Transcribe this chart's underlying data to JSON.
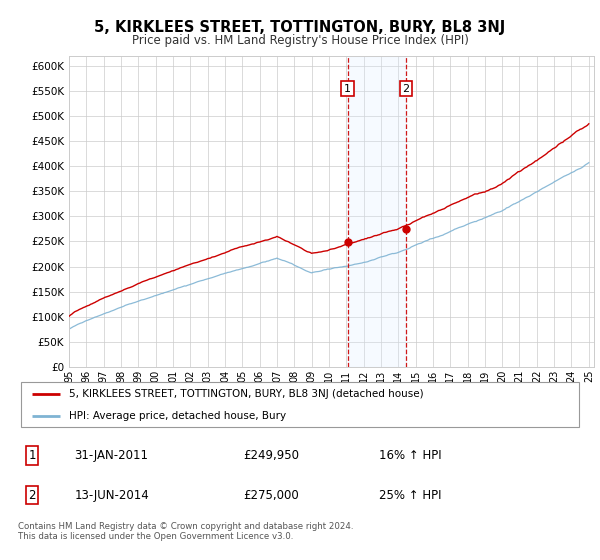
{
  "title": "5, KIRKLEES STREET, TOTTINGTON, BURY, BL8 3NJ",
  "subtitle": "Price paid vs. HM Land Registry's House Price Index (HPI)",
  "ytick_values": [
    0,
    50000,
    100000,
    150000,
    200000,
    250000,
    300000,
    350000,
    400000,
    450000,
    500000,
    550000,
    600000
  ],
  "ylim": [
    0,
    620000
  ],
  "x_start_year": 1995,
  "x_end_year": 2025,
  "legend_line1": "5, KIRKLEES STREET, TOTTINGTON, BURY, BL8 3NJ (detached house)",
  "legend_line2": "HPI: Average price, detached house, Bury",
  "annotation1_date": "31-JAN-2011",
  "annotation1_price": "£249,950",
  "annotation1_hpi": "16% ↑ HPI",
  "annotation1_year": 2011.08,
  "annotation1_value": 249950,
  "annotation2_date": "13-JUN-2014",
  "annotation2_price": "£275,000",
  "annotation2_hpi": "25% ↑ HPI",
  "annotation2_year": 2014.45,
  "annotation2_value": 275000,
  "footer": "Contains HM Land Registry data © Crown copyright and database right 2024.\nThis data is licensed under the Open Government Licence v3.0.",
  "line_color_red": "#cc0000",
  "line_color_blue": "#7fb3d3",
  "shaded_color": "#ddeeff",
  "vline_color": "#cc0000",
  "box_color": "#cc0000",
  "dot_color": "#cc0000",
  "background_color": "#ffffff",
  "grid_color": "#cccccc"
}
